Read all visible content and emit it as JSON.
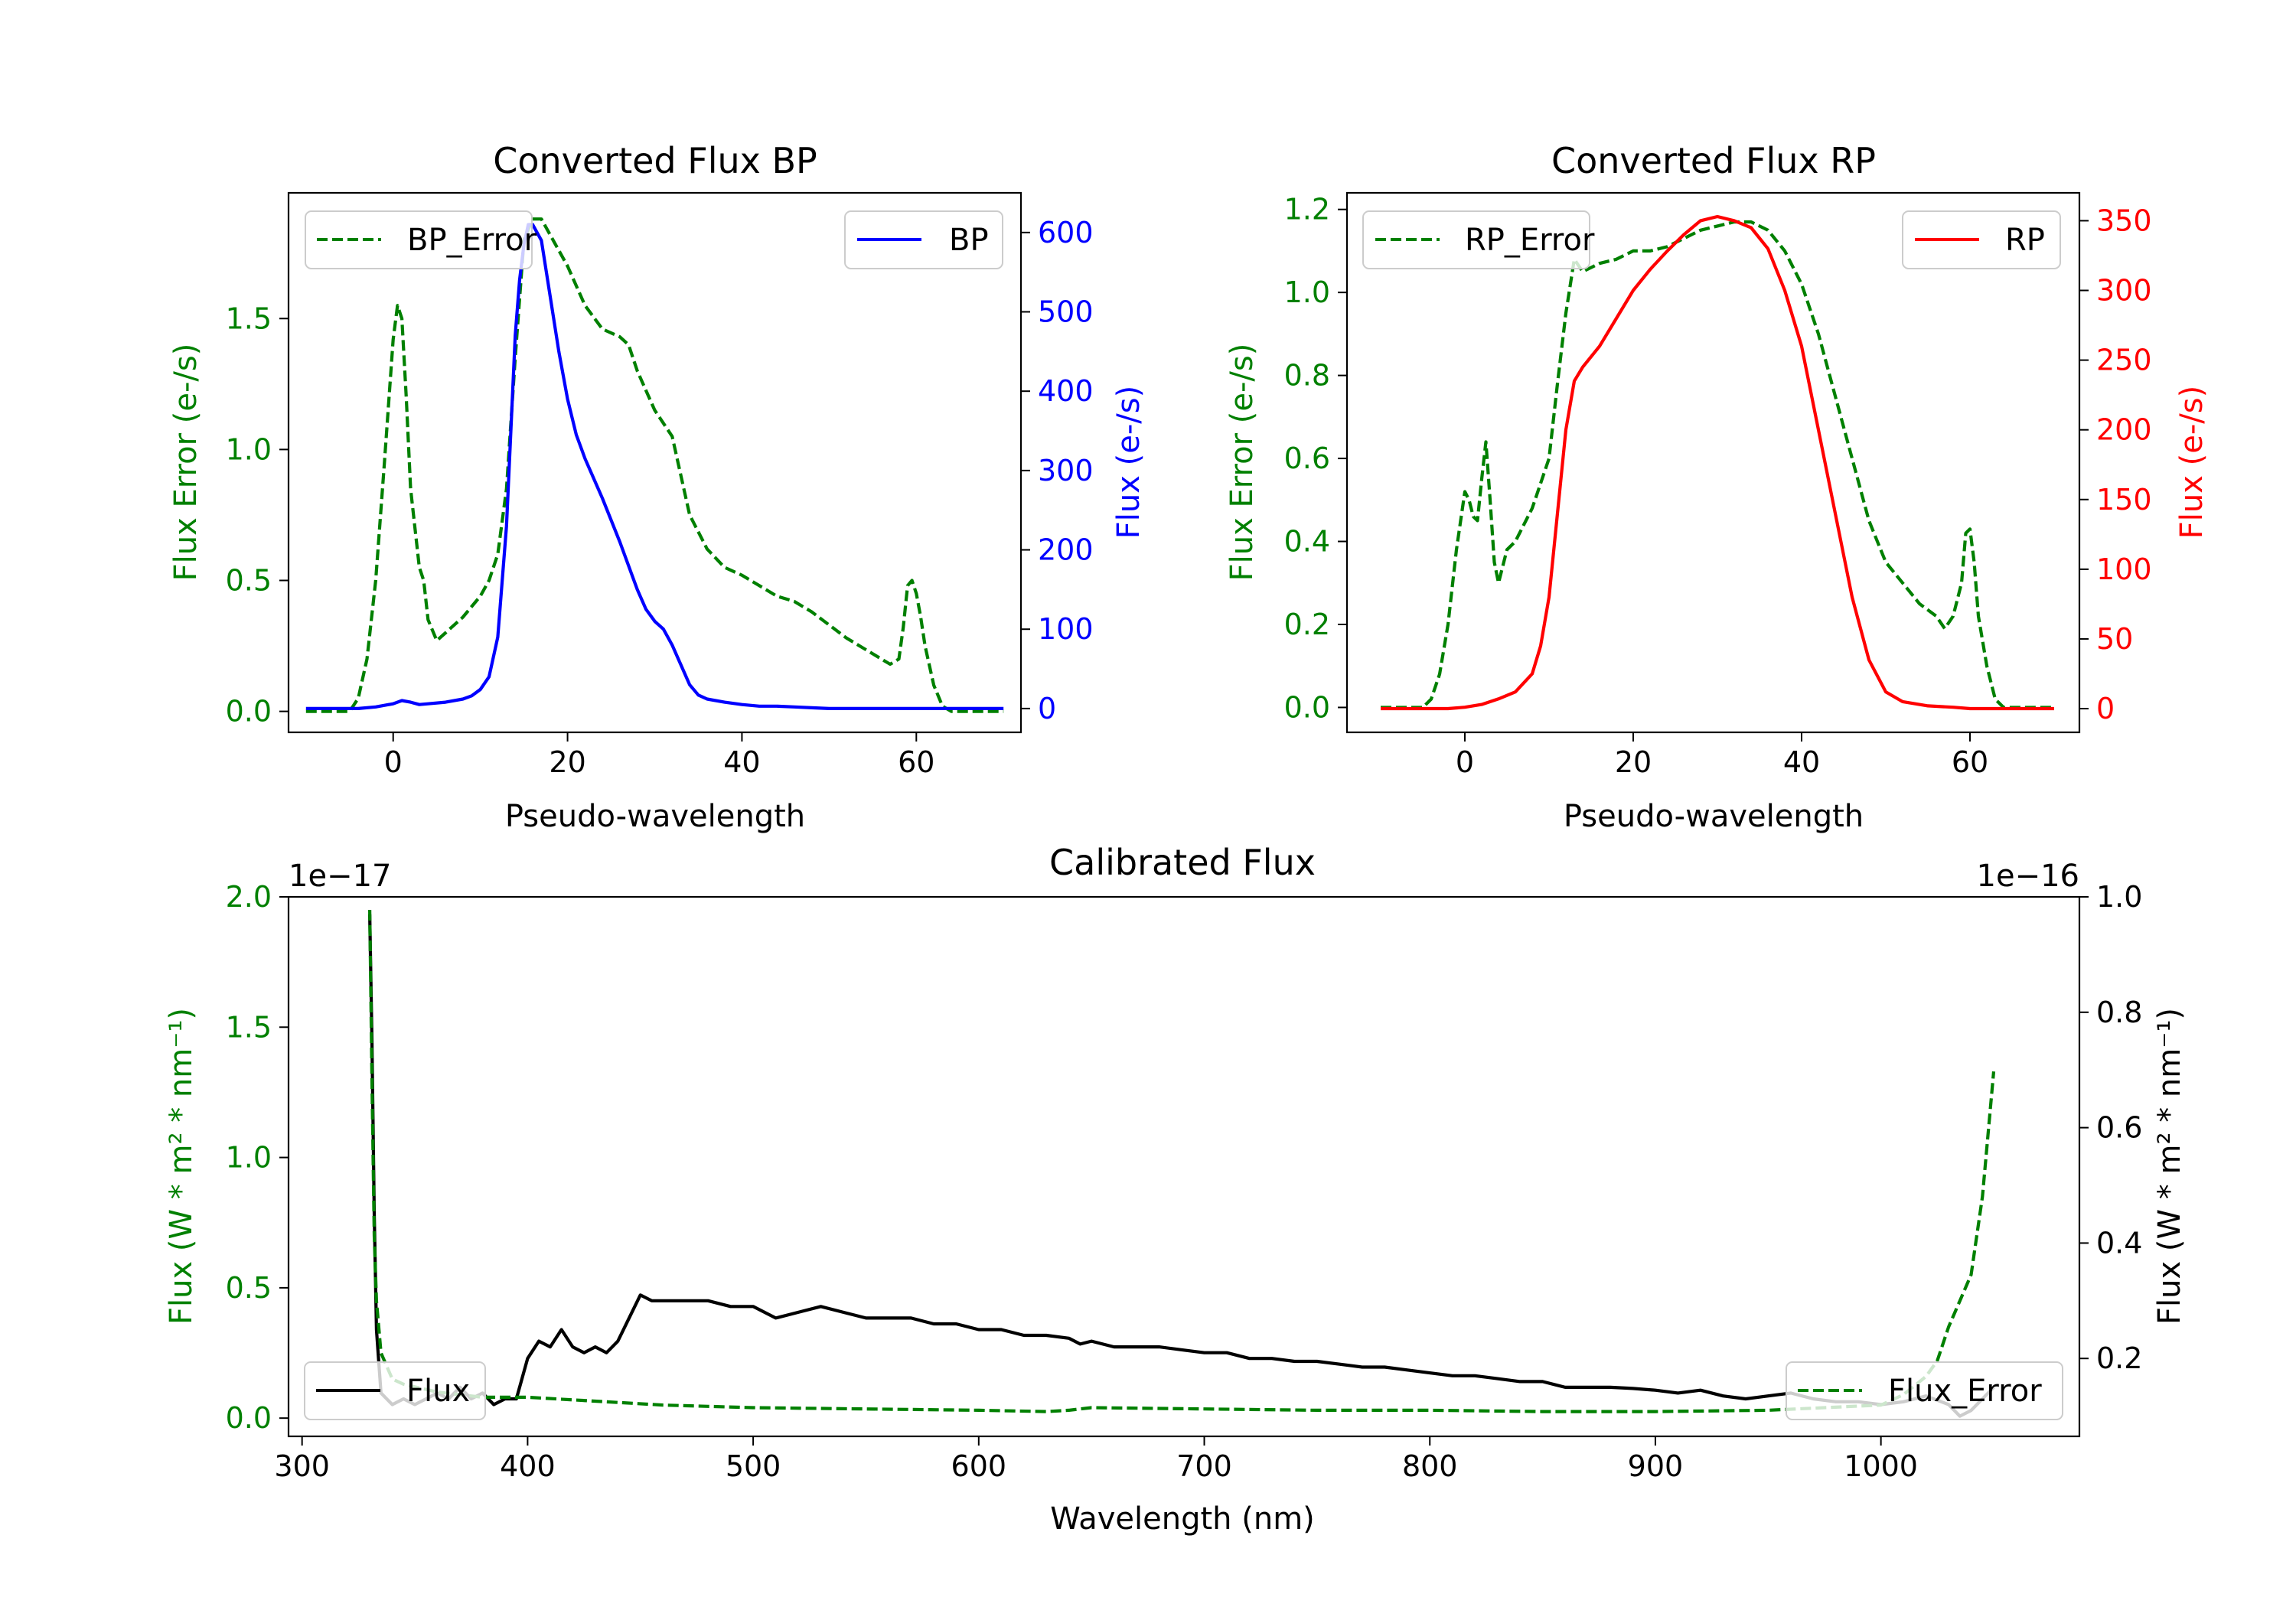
{
  "colors": {
    "green": "#008000",
    "blue": "#0000ff",
    "red": "#ff0000",
    "black": "#000000",
    "axes": "#000000"
  },
  "chart_data": [
    {
      "id": "bp",
      "type": "line",
      "title": "Converted Flux BP",
      "xlabel": "Pseudo-wavelength",
      "ylabel_left": "Flux Error (e-/s)",
      "ylabel_right": "Flux (e-/s)",
      "xlim": [
        -12,
        72
      ],
      "ylim_left": [
        -0.08,
        1.98
      ],
      "ylim_right": [
        -30,
        650
      ],
      "xticks": [
        0,
        20,
        40,
        60
      ],
      "yticks_left": [
        0.0,
        0.5,
        1.0,
        1.5
      ],
      "yticks_left_labels": [
        "0.0",
        "0.5",
        "1.0",
        "1.5"
      ],
      "yticks_right": [
        0,
        100,
        200,
        300,
        400,
        500,
        600
      ],
      "yticks_right_labels": [
        "0",
        "100",
        "200",
        "300",
        "400",
        "500",
        "600"
      ],
      "left_color": "green",
      "right_color": "blue",
      "legend_left": "BP_Error",
      "legend_right": "BP",
      "series": [
        {
          "name": "BP_Error",
          "axis": "left",
          "color": "green",
          "dash": true,
          "x": [
            -10,
            -5,
            -4,
            -3,
            -2,
            -1,
            0,
            0.5,
            1,
            1.5,
            2,
            3,
            3.5,
            4,
            5,
            6,
            8,
            10,
            11,
            12,
            13,
            14,
            15,
            16,
            17,
            18,
            20,
            22,
            24,
            26,
            27,
            28,
            30,
            32,
            33,
            34,
            36,
            38,
            40,
            42,
            44,
            46,
            48,
            50,
            52,
            54,
            56,
            57,
            58,
            58.5,
            59,
            59.5,
            60,
            60.5,
            61,
            62,
            63,
            64,
            66,
            68,
            70
          ],
          "y": [
            0.0,
            0.0,
            0.05,
            0.2,
            0.5,
            0.95,
            1.42,
            1.55,
            1.5,
            1.2,
            0.85,
            0.55,
            0.5,
            0.35,
            0.27,
            0.3,
            0.36,
            0.44,
            0.5,
            0.6,
            0.85,
            1.35,
            1.8,
            1.88,
            1.88,
            1.82,
            1.7,
            1.55,
            1.46,
            1.43,
            1.4,
            1.3,
            1.15,
            1.05,
            0.9,
            0.75,
            0.62,
            0.55,
            0.52,
            0.48,
            0.44,
            0.42,
            0.38,
            0.33,
            0.28,
            0.24,
            0.2,
            0.18,
            0.2,
            0.32,
            0.48,
            0.5,
            0.45,
            0.36,
            0.25,
            0.1,
            0.02,
            0.0,
            0.0,
            0.0,
            0.0
          ]
        },
        {
          "name": "BP",
          "axis": "right",
          "color": "blue",
          "dash": false,
          "x": [
            -10,
            -8,
            -6,
            -4,
            -2,
            0,
            1,
            2,
            3,
            4,
            6,
            8,
            9,
            10,
            11,
            12,
            13,
            14,
            14.5,
            15,
            15.5,
            16,
            17,
            18,
            19,
            20,
            21,
            22,
            24,
            26,
            28,
            29,
            30,
            31,
            32,
            33,
            34,
            35,
            36,
            38,
            40,
            42,
            44,
            46,
            48,
            50,
            52,
            55,
            58,
            60,
            62,
            64,
            66,
            68,
            70
          ],
          "y": [
            0,
            0,
            0,
            0,
            2,
            6,
            10,
            8,
            5,
            6,
            8,
            12,
            16,
            24,
            40,
            90,
            230,
            470,
            540,
            585,
            610,
            610,
            590,
            520,
            450,
            390,
            345,
            315,
            265,
            210,
            150,
            125,
            110,
            100,
            80,
            55,
            30,
            17,
            12,
            8,
            5,
            3,
            3,
            2,
            1,
            0,
            0,
            0,
            0,
            0,
            0,
            0,
            0,
            0,
            0
          ]
        }
      ]
    },
    {
      "id": "rp",
      "type": "line",
      "title": "Converted Flux RP",
      "xlabel": "Pseudo-wavelength",
      "ylabel_left": "Flux Error (e-/s)",
      "ylabel_right": "Flux (e-/s)",
      "xlim": [
        -14,
        73
      ],
      "ylim_left": [
        -0.06,
        1.24
      ],
      "ylim_right": [
        -17,
        370
      ],
      "xticks": [
        0,
        20,
        40,
        60
      ],
      "yticks_left": [
        0.0,
        0.2,
        0.4,
        0.6,
        0.8,
        1.0,
        1.2
      ],
      "yticks_left_labels": [
        "0.0",
        "0.2",
        "0.4",
        "0.6",
        "0.8",
        "1.0",
        "1.2"
      ],
      "yticks_right": [
        0,
        50,
        100,
        150,
        200,
        250,
        300,
        350
      ],
      "yticks_right_labels": [
        "0",
        "50",
        "100",
        "150",
        "200",
        "250",
        "300",
        "350"
      ],
      "left_color": "green",
      "right_color": "red",
      "legend_left": "RP_Error",
      "legend_right": "RP",
      "series": [
        {
          "name": "RP_Error",
          "axis": "left",
          "color": "green",
          "dash": true,
          "x": [
            -10,
            -5,
            -4,
            -3,
            -2,
            -1,
            0,
            0.5,
            1,
            1.5,
            2,
            2.5,
            3,
            3.5,
            4,
            5,
            6,
            8,
            10,
            11,
            12,
            13,
            14,
            16,
            18,
            20,
            22,
            24,
            26,
            28,
            30,
            32,
            34,
            36,
            38,
            40,
            42,
            44,
            46,
            48,
            50,
            52,
            54,
            56,
            57,
            58,
            59,
            59.5,
            60,
            60.5,
            61,
            62,
            63,
            64,
            66,
            68,
            70
          ],
          "y": [
            0.0,
            0.0,
            0.02,
            0.08,
            0.2,
            0.38,
            0.52,
            0.5,
            0.46,
            0.45,
            0.55,
            0.64,
            0.5,
            0.35,
            0.3,
            0.38,
            0.4,
            0.48,
            0.6,
            0.78,
            0.95,
            1.08,
            1.05,
            1.07,
            1.08,
            1.1,
            1.1,
            1.11,
            1.13,
            1.15,
            1.16,
            1.17,
            1.17,
            1.15,
            1.1,
            1.02,
            0.9,
            0.75,
            0.6,
            0.45,
            0.35,
            0.3,
            0.25,
            0.22,
            0.19,
            0.22,
            0.3,
            0.42,
            0.43,
            0.35,
            0.22,
            0.1,
            0.02,
            0.0,
            0.0,
            0.0,
            0.0
          ]
        },
        {
          "name": "RP",
          "axis": "right",
          "color": "red",
          "dash": false,
          "x": [
            -10,
            -6,
            -2,
            0,
            2,
            4,
            6,
            8,
            9,
            10,
            11,
            12,
            13,
            14,
            16,
            18,
            20,
            22,
            24,
            26,
            28,
            30,
            32,
            34,
            36,
            38,
            40,
            42,
            44,
            46,
            48,
            50,
            52,
            55,
            58,
            60,
            62,
            64,
            66,
            68,
            70
          ],
          "y": [
            0,
            0,
            0,
            1,
            3,
            7,
            12,
            25,
            45,
            80,
            140,
            200,
            235,
            245,
            260,
            280,
            300,
            315,
            328,
            340,
            350,
            353,
            350,
            345,
            330,
            300,
            260,
            200,
            140,
            80,
            35,
            12,
            5,
            2,
            1,
            0,
            0,
            0,
            0,
            0,
            0
          ]
        }
      ]
    },
    {
      "id": "cal",
      "type": "line",
      "title": "Calibrated Flux",
      "xlabel": "Wavelength (nm)",
      "ylabel_left": "Flux (W * m² * nm⁻¹)",
      "ylabel_right": "Flux (W * m² * nm⁻¹)",
      "offset_left": "1e−17",
      "offset_right": "1e−16",
      "xlim": [
        294,
        1088
      ],
      "ylim_left": [
        -0.07,
        2.0
      ],
      "ylim_right": [
        0.065,
        1.0
      ],
      "xticks": [
        300,
        400,
        500,
        600,
        700,
        800,
        900,
        1000
      ],
      "yticks_left": [
        0.0,
        0.5,
        1.0,
        1.5,
        2.0
      ],
      "yticks_left_labels": [
        "0.0",
        "0.5",
        "1.0",
        "1.5",
        "2.0"
      ],
      "yticks_right": [
        0.2,
        0.4,
        0.6,
        0.8,
        1.0
      ],
      "yticks_right_labels": [
        "0.2",
        "0.4",
        "0.6",
        "0.8",
        "1.0"
      ],
      "left_color": "green",
      "right_color": "black",
      "legend_left": "Flux",
      "legend_right": "Flux_Error",
      "series": [
        {
          "name": "Flux",
          "axis": "right",
          "color": "black",
          "dash": false,
          "x": [
            330,
            331,
            332,
            333,
            335,
            340,
            345,
            350,
            355,
            360,
            365,
            370,
            375,
            380,
            385,
            390,
            395,
            400,
            405,
            410,
            415,
            420,
            425,
            430,
            435,
            440,
            445,
            450,
            455,
            460,
            470,
            480,
            490,
            500,
            510,
            520,
            530,
            540,
            550,
            560,
            570,
            580,
            590,
            600,
            610,
            620,
            630,
            640,
            645,
            650,
            660,
            670,
            680,
            690,
            700,
            710,
            720,
            730,
            740,
            750,
            760,
            770,
            780,
            790,
            800,
            810,
            820,
            830,
            840,
            850,
            860,
            870,
            880,
            890,
            900,
            910,
            920,
            930,
            940,
            950,
            960,
            970,
            980,
            990,
            1000,
            1010,
            1020,
            1030,
            1035,
            1040,
            1045,
            1050
          ],
          "y": [
            0.97,
            0.75,
            0.45,
            0.25,
            0.14,
            0.12,
            0.13,
            0.12,
            0.13,
            0.14,
            0.13,
            0.15,
            0.13,
            0.14,
            0.12,
            0.13,
            0.13,
            0.2,
            0.23,
            0.22,
            0.25,
            0.22,
            0.21,
            0.22,
            0.21,
            0.23,
            0.27,
            0.31,
            0.3,
            0.3,
            0.3,
            0.3,
            0.29,
            0.29,
            0.27,
            0.28,
            0.29,
            0.28,
            0.27,
            0.27,
            0.27,
            0.26,
            0.26,
            0.25,
            0.25,
            0.24,
            0.24,
            0.235,
            0.225,
            0.23,
            0.22,
            0.22,
            0.22,
            0.215,
            0.21,
            0.21,
            0.2,
            0.2,
            0.195,
            0.195,
            0.19,
            0.185,
            0.185,
            0.18,
            0.175,
            0.17,
            0.17,
            0.165,
            0.16,
            0.16,
            0.15,
            0.15,
            0.15,
            0.148,
            0.145,
            0.14,
            0.145,
            0.135,
            0.13,
            0.135,
            0.14,
            0.13,
            0.125,
            0.125,
            0.12,
            0.125,
            0.135,
            0.12,
            0.1,
            0.11,
            0.13,
            0.15
          ]
        },
        {
          "name": "Flux_Error",
          "axis": "left",
          "color": "green",
          "dash": true,
          "x": [
            330,
            331,
            332,
            333,
            335,
            340,
            345,
            350,
            355,
            360,
            370,
            380,
            390,
            400,
            420,
            440,
            460,
            480,
            500,
            550,
            600,
            630,
            640,
            650,
            700,
            750,
            800,
            850,
            900,
            950,
            1000,
            1010,
            1020,
            1025,
            1030,
            1035,
            1040,
            1045,
            1050
          ],
          "y": [
            1.95,
            1.3,
            0.7,
            0.45,
            0.25,
            0.15,
            0.13,
            0.12,
            0.11,
            0.1,
            0.09,
            0.08,
            0.08,
            0.08,
            0.07,
            0.06,
            0.05,
            0.045,
            0.04,
            0.035,
            0.03,
            0.025,
            0.03,
            0.04,
            0.035,
            0.03,
            0.03,
            0.025,
            0.025,
            0.03,
            0.05,
            0.09,
            0.16,
            0.22,
            0.35,
            0.45,
            0.55,
            0.85,
            1.33
          ]
        }
      ]
    }
  ]
}
